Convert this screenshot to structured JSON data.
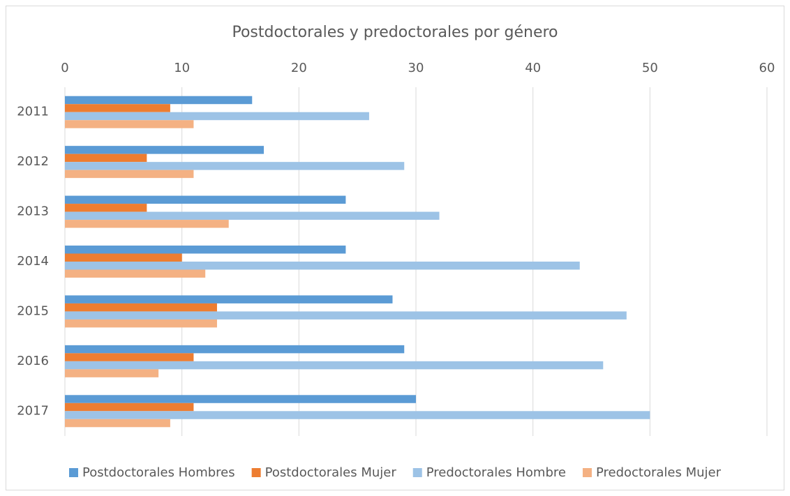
{
  "chart_data": {
    "type": "hbar",
    "title": "Postdoctorales y predoctorales por género",
    "categories": [
      "2011",
      "2012",
      "2013",
      "2014",
      "2015",
      "2016",
      "2017"
    ],
    "series": [
      {
        "name": "Postdoctorales Hombres",
        "color": "#5b9bd5",
        "values": [
          16,
          17,
          24,
          24,
          28,
          29,
          30
        ]
      },
      {
        "name": "Postdoctorales Mujer",
        "color": "#ed7d31",
        "values": [
          9,
          7,
          7,
          10,
          13,
          11,
          11
        ]
      },
      {
        "name": "Predoctorales Hombre",
        "color": "#9dc3e6",
        "values": [
          26,
          29,
          32,
          44,
          48,
          46,
          50
        ]
      },
      {
        "name": "Predoctorales Mujer",
        "color": "#f4b183",
        "values": [
          11,
          11,
          14,
          12,
          13,
          8,
          9
        ]
      }
    ],
    "xlim": [
      0,
      60
    ],
    "xticks": [
      0,
      10,
      20,
      30,
      40,
      50,
      60
    ],
    "grid": true,
    "legend": "bottom"
  }
}
